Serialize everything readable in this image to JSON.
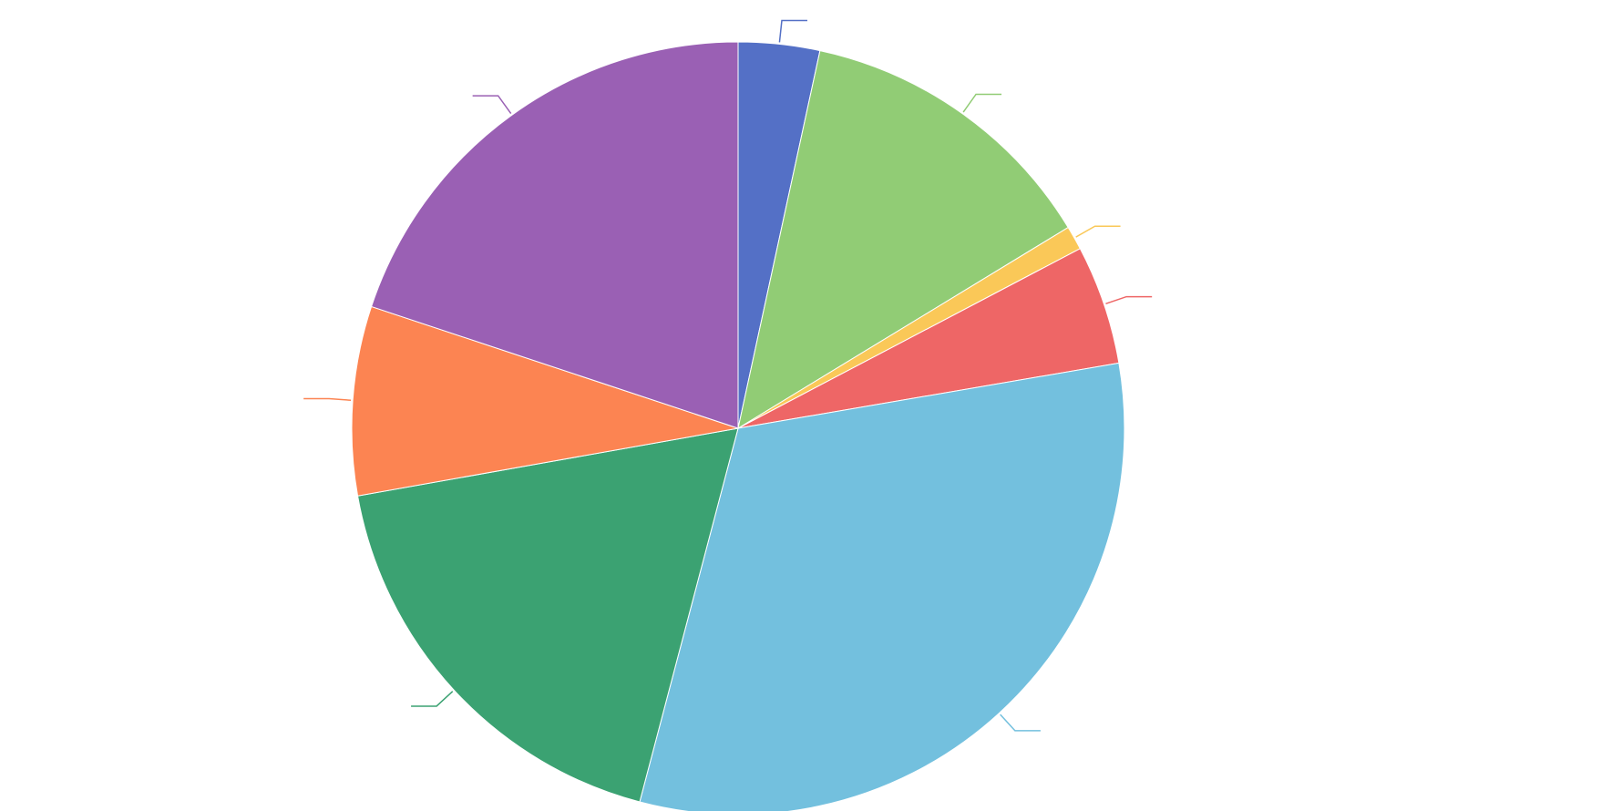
{
  "chart_data": {
    "type": "pie",
    "title": "",
    "legend": "none",
    "start_angle": "top",
    "direction": "clockwise",
    "slices": [
      {
        "name": "",
        "value": 3.4,
        "color": "#5470c6"
      },
      {
        "name": "",
        "value": 12.9,
        "color": "#91cc75"
      },
      {
        "name": "",
        "value": 1.0,
        "color": "#fac858"
      },
      {
        "name": "",
        "value": 5.0,
        "color": "#ee6666"
      },
      {
        "name": "",
        "value": 31.8,
        "color": "#73c0de"
      },
      {
        "name": "",
        "value": 18.1,
        "color": "#3ba272"
      },
      {
        "name": "",
        "value": 7.9,
        "color": "#fc8452"
      },
      {
        "name": "",
        "value": 19.9,
        "color": "#9a60b4"
      }
    ]
  }
}
